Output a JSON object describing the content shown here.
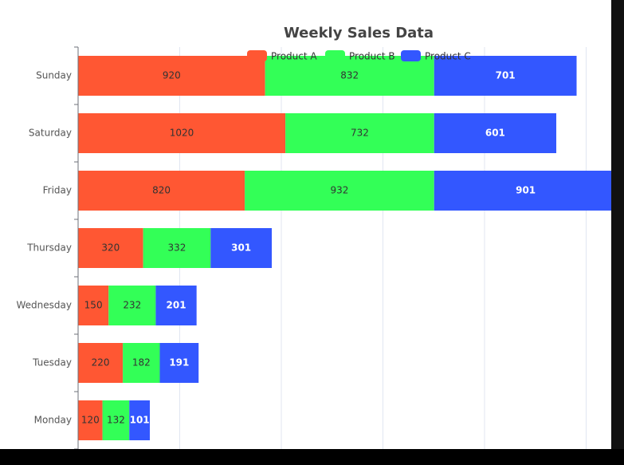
{
  "chart_data": {
    "type": "bar",
    "orientation": "horizontal",
    "stacked": true,
    "title": "Weekly Sales Data",
    "categories": [
      "Monday",
      "Tuesday",
      "Wednesday",
      "Thursday",
      "Friday",
      "Saturday",
      "Sunday"
    ],
    "series": [
      {
        "name": "Product A",
        "color": "#ff5733",
        "values": [
          120,
          220,
          150,
          320,
          820,
          1020,
          920
        ]
      },
      {
        "name": "Product B",
        "color": "#33ff57",
        "values": [
          132,
          182,
          232,
          332,
          932,
          732,
          832
        ]
      },
      {
        "name": "Product C",
        "color": "#3357ff",
        "values": [
          101,
          191,
          201,
          301,
          901,
          601,
          701
        ]
      }
    ],
    "xlim": [
      0,
      3000
    ],
    "xticks": [
      0,
      500,
      1000,
      1500,
      2000,
      2500,
      3000
    ],
    "grid": true,
    "legend": "top"
  }
}
